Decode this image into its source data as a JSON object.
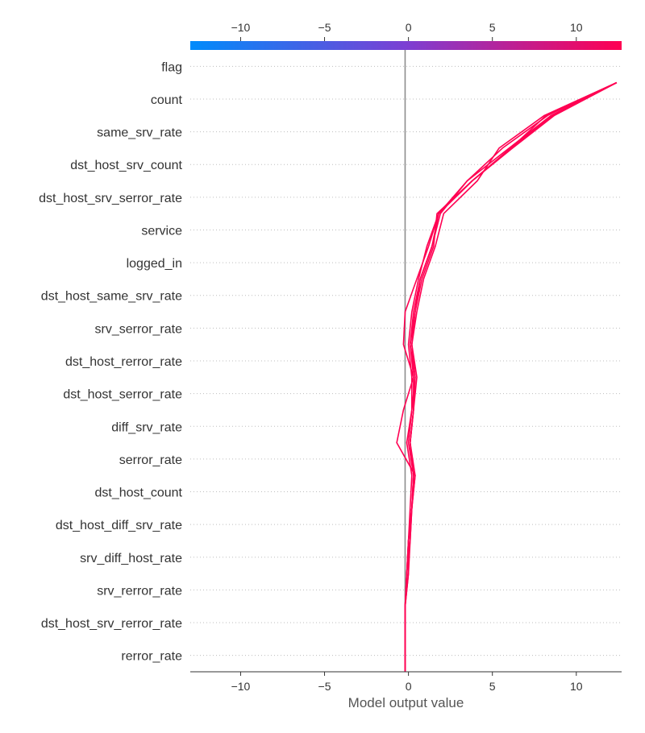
{
  "chart_data": {
    "type": "line",
    "chart_kind": "shap-decision-plot",
    "xlabel": "Model output value",
    "xlim": [
      -13.0,
      12.7
    ],
    "xticks": [
      -10,
      -5,
      0,
      5,
      10
    ],
    "base_value": -0.2,
    "features": [
      "flag",
      "count",
      "same_srv_rate",
      "dst_host_srv_count",
      "dst_host_srv_serror_rate",
      "service",
      "logged_in",
      "dst_host_same_srv_rate",
      "srv_serror_rate",
      "dst_host_rerror_rate",
      "dst_host_serror_rate",
      "diff_srv_rate",
      "serror_rate",
      "dst_host_count",
      "dst_host_diff_srv_rate",
      "srv_diff_host_rate",
      "srv_rerror_rate",
      "dst_host_srv_rerror_rate",
      "rerror_rate"
    ],
    "series": [
      {
        "values": [
          -0.2,
          -0.2,
          -0.2,
          0.0,
          0.0,
          0.2,
          0.4,
          -0.7,
          -0.3,
          0.3,
          -0.3,
          -0.2,
          0.5,
          1.2,
          1.8,
          3.8,
          6.1,
          8.2,
          12.4
        ]
      },
      {
        "values": [
          -0.2,
          -0.2,
          -0.2,
          -0.1,
          0.0,
          0.2,
          0.3,
          0.0,
          0.2,
          0.4,
          0.1,
          0.4,
          0.7,
          1.4,
          1.9,
          3.5,
          6.0,
          8.5,
          12.4
        ]
      },
      {
        "values": [
          -0.2,
          -0.2,
          -0.2,
          -0.1,
          0.1,
          0.2,
          0.3,
          0.1,
          0.3,
          0.4,
          0.2,
          0.4,
          0.8,
          1.5,
          1.7,
          3.8,
          6.2,
          8.7,
          12.4
        ]
      },
      {
        "values": [
          -0.2,
          -0.2,
          -0.2,
          -0.1,
          0.0,
          0.1,
          0.2,
          -0.1,
          0.2,
          0.2,
          0.0,
          0.2,
          0.6,
          1.1,
          1.8,
          3.8,
          6.1,
          8.6,
          12.4
        ]
      },
      {
        "values": [
          -0.2,
          -0.2,
          -0.2,
          0.0,
          0.1,
          0.2,
          0.3,
          0.1,
          0.3,
          0.5,
          0.2,
          0.5,
          0.9,
          1.6,
          2.1,
          4.1,
          5.4,
          8.1,
          12.4
        ]
      },
      {
        "values": [
          -0.2,
          -0.2,
          -0.2,
          -0.1,
          0.0,
          0.2,
          0.4,
          0.1,
          0.3,
          0.3,
          0.1,
          0.3,
          0.7,
          1.4,
          1.8,
          3.5,
          5.6,
          8.3,
          12.4
        ]
      }
    ],
    "line_color": "#ff0052",
    "colorbar": {
      "stops": [
        "#008bfb",
        "#ff0052"
      ],
      "ticks": [
        -10,
        -5,
        0,
        5,
        10
      ]
    }
  }
}
